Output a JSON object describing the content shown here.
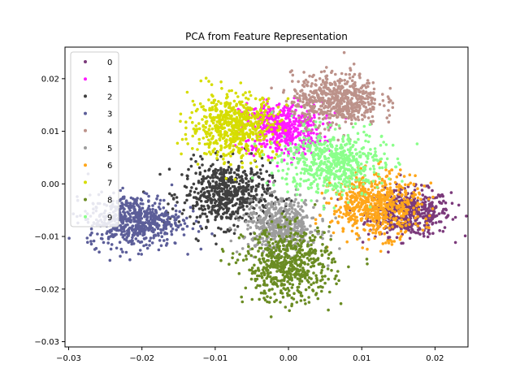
{
  "chart_data": {
    "type": "scatter",
    "title": "PCA from Feature Representation",
    "xlabel": "",
    "ylabel": "",
    "xlim": [
      -0.0305,
      0.0245
    ],
    "ylim": [
      -0.031,
      0.026
    ],
    "xticks": [
      -0.03,
      -0.02,
      -0.01,
      0.0,
      0.01,
      0.02
    ],
    "xtick_labels": [
      "−0.03",
      "−0.02",
      "−0.01",
      "0.00",
      "0.01",
      "0.02"
    ],
    "yticks": [
      -0.03,
      -0.02,
      -0.01,
      0.0,
      0.01,
      0.02
    ],
    "ytick_labels": [
      "−0.03",
      "−0.02",
      "−0.01",
      "0.00",
      "0.01",
      "0.02"
    ],
    "grid": false,
    "legend_position": "top-left",
    "series": [
      {
        "name": "0",
        "color": "#7b3a7b",
        "center": [
          0.0165,
          -0.0055
        ],
        "spread": [
          0.0028,
          0.0022
        ],
        "count": 500
      },
      {
        "name": "1",
        "color": "#ff1aff",
        "center": [
          -0.001,
          0.0105
        ],
        "spread": [
          0.0028,
          0.0025
        ],
        "count": 500
      },
      {
        "name": "2",
        "color": "#3f3f3f",
        "center": [
          -0.0085,
          -0.002
        ],
        "spread": [
          0.003,
          0.003
        ],
        "count": 600
      },
      {
        "name": "3",
        "color": "#5c5e99",
        "center": [
          -0.021,
          -0.007
        ],
        "spread": [
          0.0032,
          0.0025
        ],
        "count": 600
      },
      {
        "name": "4",
        "color": "#bc928a",
        "center": [
          0.0065,
          0.016
        ],
        "spread": [
          0.003,
          0.0025
        ],
        "count": 600
      },
      {
        "name": "5",
        "color": "#9d9d9d",
        "center": [
          -0.001,
          -0.008
        ],
        "spread": [
          0.0025,
          0.0025
        ],
        "count": 500
      },
      {
        "name": "6",
        "color": "#ffa61a",
        "center": [
          0.012,
          -0.004
        ],
        "spread": [
          0.003,
          0.003
        ],
        "count": 600
      },
      {
        "name": "7",
        "color": "#d6dd00",
        "center": [
          -0.0075,
          0.011
        ],
        "spread": [
          0.003,
          0.003
        ],
        "count": 600
      },
      {
        "name": "8",
        "color": "#6b8c23",
        "center": [
          0.0,
          -0.0155
        ],
        "spread": [
          0.003,
          0.0035
        ],
        "count": 600
      },
      {
        "name": "9",
        "color": "#8bff8b",
        "center": [
          0.006,
          0.004
        ],
        "spread": [
          0.0035,
          0.003
        ],
        "count": 600
      }
    ]
  }
}
